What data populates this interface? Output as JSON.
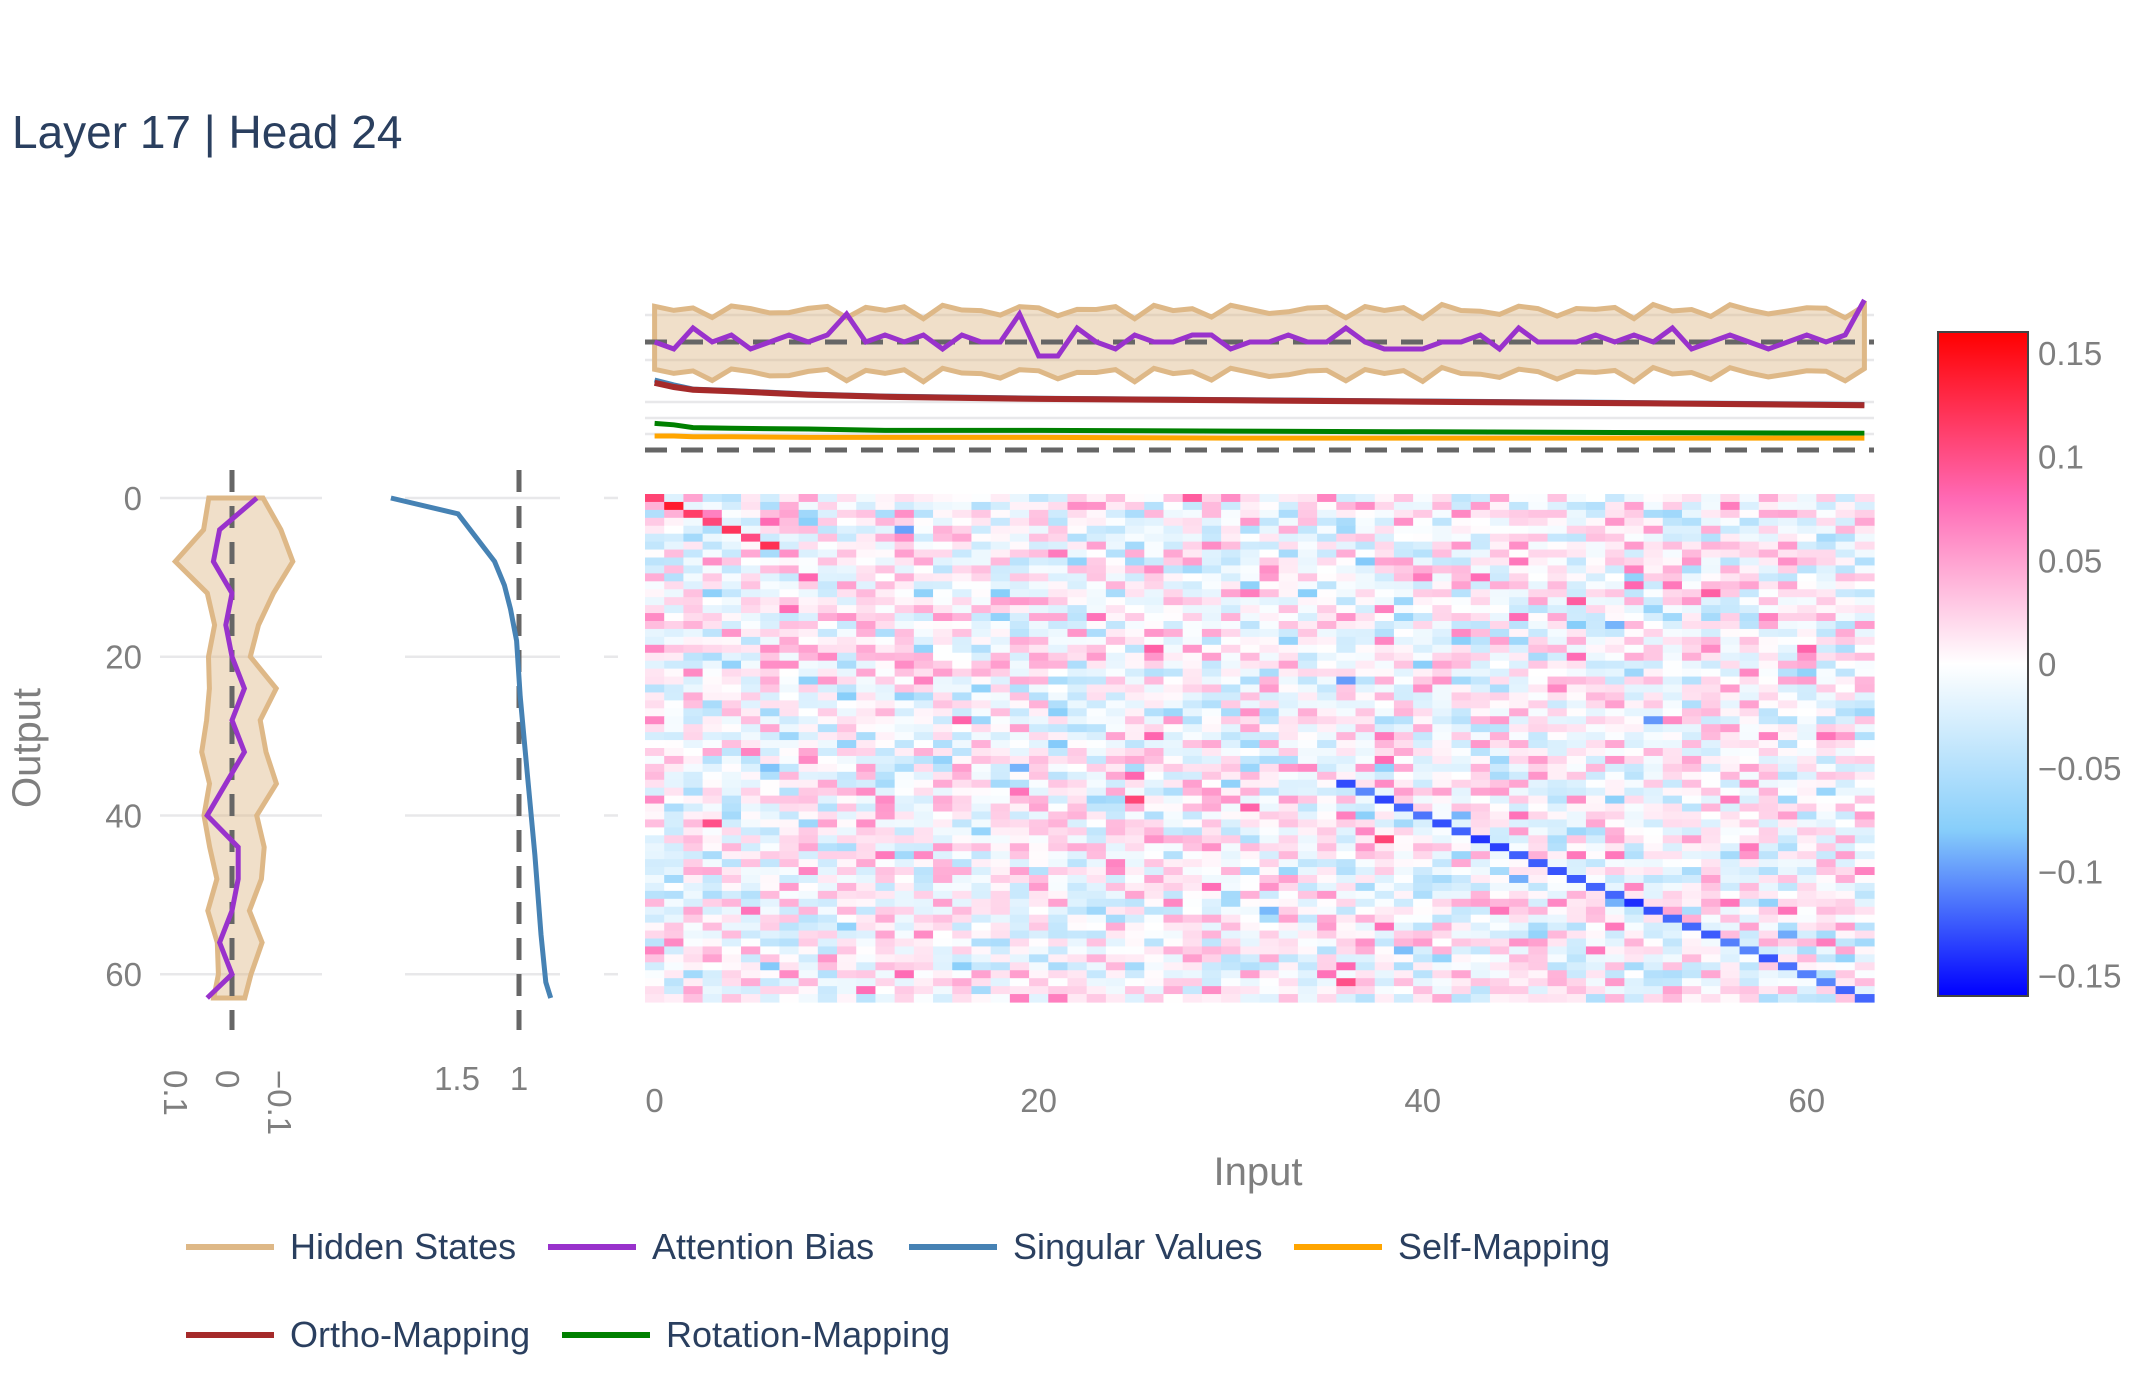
{
  "title": "Layer 17 | Head 24",
  "xlabel": "Input",
  "ylabel": "Output",
  "legend": [
    {
      "name": "Hidden States",
      "color": "#deb887"
    },
    {
      "name": "Attention Bias",
      "color": "#9932cc"
    },
    {
      "name": "Singular Values",
      "color": "#4682b4"
    },
    {
      "name": "Self-Mapping",
      "color": "#ffa500"
    },
    {
      "name": "Ortho-Mapping",
      "color": "#a52a2a"
    },
    {
      "name": "Rotation-Mapping",
      "color": "#008000"
    }
  ],
  "ticks": {
    "heatmap_x": [
      "0",
      "20",
      "40",
      "60"
    ],
    "heatmap_y": [
      "0",
      "20",
      "40",
      "60"
    ],
    "left_x": [
      "0.1",
      "0",
      "−0.1"
    ],
    "singular_x": [
      "1.5",
      "1"
    ],
    "colorbar": [
      "0.15",
      "0.1",
      "0.05",
      "0",
      "−0.05",
      "−0.1",
      "−0.15"
    ]
  },
  "chart_data": [
    {
      "type": "heatmap",
      "panel": "main",
      "x_range": [
        0,
        63
      ],
      "y_range": [
        0,
        63
      ],
      "y_reversed": true,
      "zmin": -0.16,
      "zmax": 0.16,
      "colorscale": [
        "#0000ff",
        "#87cefa",
        "#ffffff",
        "#ff69b4",
        "#ff0000"
      ],
      "noise_std": 0.03,
      "diagonal_features": [
        {
          "from": [
            0,
            0
          ],
          "to": [
            6,
            6
          ],
          "value": 0.12
        },
        {
          "from": [
            36,
            36
          ],
          "to": [
            63,
            63
          ],
          "value": -0.12
        }
      ]
    },
    {
      "type": "line",
      "panel": "left",
      "orientation": "vertical",
      "x_range_reversed": [
        0.12,
        -0.12
      ],
      "series": [
        {
          "name": "Attention Bias",
          "y": [
            0,
            4,
            8,
            12,
            16,
            20,
            24,
            28,
            32,
            36,
            40,
            44,
            48,
            52,
            56,
            60,
            63
          ],
          "x": [
            -0.04,
            0.02,
            0.03,
            0.0,
            0.01,
            0.0,
            -0.02,
            0.0,
            -0.02,
            0.01,
            0.04,
            -0.01,
            -0.01,
            0.0,
            0.02,
            0.0,
            0.04
          ]
        },
        {
          "name": "Hidden States",
          "band_halfwidth": [
            0.05,
            0.07,
            0.11,
            0.06,
            0.04,
            0.04,
            0.06,
            0.05,
            0.06,
            0.06,
            0.05,
            0.05,
            0.04,
            0.04,
            0.04,
            0.03,
            0.03
          ]
        }
      ]
    },
    {
      "type": "line",
      "panel": "singular",
      "orientation": "vertical",
      "x_range_reversed": [
        2.1,
        0.5
      ],
      "reference_value": 1.0,
      "series": [
        {
          "name": "Singular Values",
          "y": [
            0,
            2,
            5,
            8,
            11,
            14,
            18,
            25,
            35,
            45,
            55,
            61,
            63
          ],
          "x": [
            2.05,
            1.5,
            1.35,
            1.2,
            1.12,
            1.07,
            1.02,
            0.99,
            0.93,
            0.87,
            0.82,
            0.78,
            0.74
          ]
        }
      ]
    },
    {
      "type": "line",
      "panel": "top-bias",
      "x_range": [
        0,
        63
      ],
      "series": [
        {
          "name": "Attention Bias",
          "x": [
            0,
            1,
            2,
            3,
            4,
            5,
            6,
            7,
            8,
            9,
            10,
            11,
            12,
            13,
            14,
            15,
            16,
            17,
            18,
            19,
            20,
            21,
            22,
            23,
            24,
            25,
            26,
            27,
            28,
            29,
            30,
            31,
            32,
            33,
            34,
            35,
            36,
            37,
            38,
            39,
            40,
            41,
            42,
            43,
            44,
            45,
            46,
            47,
            48,
            49,
            50,
            51,
            52,
            53,
            54,
            55,
            56,
            57,
            58,
            59,
            60,
            61,
            62,
            63
          ],
          "y": [
            0.0,
            -0.01,
            0.02,
            0.0,
            0.01,
            -0.01,
            0.0,
            0.01,
            0.0,
            0.01,
            0.04,
            0.0,
            0.01,
            0.0,
            0.01,
            -0.01,
            0.01,
            0.0,
            0.0,
            0.04,
            -0.02,
            -0.02,
            0.02,
            0.0,
            -0.01,
            0.01,
            0.0,
            0.0,
            0.01,
            0.01,
            -0.01,
            0.0,
            0.0,
            0.01,
            0.0,
            0.0,
            0.02,
            0.0,
            -0.01,
            -0.01,
            -0.01,
            0.0,
            0.0,
            0.01,
            -0.01,
            0.02,
            0.0,
            0.0,
            0.0,
            0.01,
            0.0,
            0.01,
            0.0,
            0.02,
            -0.01,
            0.0,
            0.01,
            0.0,
            -0.01,
            0.0,
            0.01,
            0.0,
            0.01,
            0.06
          ]
        },
        {
          "name": "Hidden States",
          "band_halfwidth": 0.045
        }
      ]
    },
    {
      "type": "line",
      "panel": "top-mappings",
      "x_range": [
        0,
        63
      ],
      "reference_value": 0,
      "series": [
        {
          "name": "Singular Values",
          "x": [
            0,
            1,
            2,
            4,
            8,
            12,
            20,
            30,
            40,
            50,
            63
          ],
          "y": [
            1.0,
            0.93,
            0.87,
            0.85,
            0.8,
            0.77,
            0.74,
            0.72,
            0.7,
            0.68,
            0.65
          ]
        },
        {
          "name": "Ortho-Mapping",
          "x": [
            0,
            1,
            2,
            4,
            8,
            12,
            20,
            30,
            40,
            50,
            63
          ],
          "y": [
            0.96,
            0.9,
            0.86,
            0.84,
            0.79,
            0.76,
            0.73,
            0.71,
            0.69,
            0.67,
            0.64
          ]
        },
        {
          "name": "Rotation-Mapping",
          "x": [
            0,
            1,
            2,
            4,
            8,
            12,
            20,
            30,
            40,
            50,
            63
          ],
          "y": [
            0.38,
            0.36,
            0.32,
            0.31,
            0.3,
            0.28,
            0.28,
            0.27,
            0.26,
            0.25,
            0.24
          ]
        },
        {
          "name": "Self-Mapping",
          "x": [
            0,
            1,
            2,
            4,
            8,
            12,
            20,
            30,
            40,
            50,
            63
          ],
          "y": [
            0.2,
            0.2,
            0.19,
            0.19,
            0.18,
            0.18,
            0.18,
            0.17,
            0.17,
            0.17,
            0.17
          ]
        }
      ]
    }
  ]
}
